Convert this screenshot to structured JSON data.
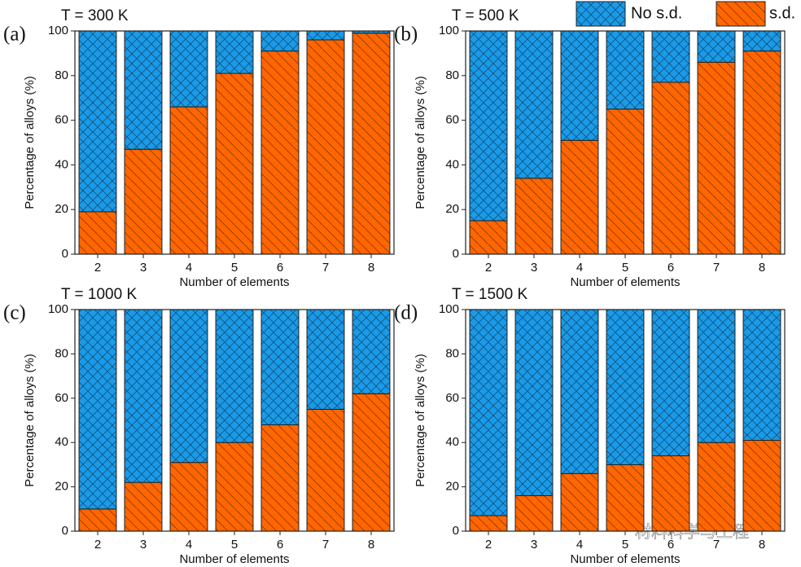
{
  "chart_data": [
    {
      "type": "bar",
      "stacked": true,
      "label": "(a)",
      "title": "T = 300 K",
      "x_label": "Number of elements",
      "y_label": "Percentage of alloys (%)",
      "categories": [
        "2",
        "3",
        "4",
        "5",
        "6",
        "7",
        "8"
      ],
      "series": [
        {
          "color": "#1a9ae8",
          "hatch": "cross",
          "values": [
            81,
            53,
            34,
            19,
            9,
            4,
            1
          ]
        },
        {
          "color": "#ff6600",
          "hatch": "diagonal",
          "values": [
            19,
            47,
            66,
            81,
            91,
            96,
            99
          ]
        }
      ],
      "ylim": [
        0,
        100
      ],
      "yticks": [
        0,
        20,
        40,
        60,
        80,
        100
      ]
    },
    {
      "type": "bar",
      "stacked": true,
      "label": "(b)",
      "title": "T = 500 K",
      "x_label": "Number of elements",
      "y_label": "Percentage of alloys (%)",
      "categories": [
        "2",
        "3",
        "4",
        "5",
        "6",
        "7",
        "8"
      ],
      "series": [
        {
          "name": "No s.d.",
          "color": "#1a9ae8",
          "hatch": "cross",
          "values": [
            85,
            66,
            49,
            35,
            23,
            14,
            9
          ]
        },
        {
          "name": "s.d.",
          "color": "#ff6600",
          "hatch": "diagonal",
          "values": [
            15,
            34,
            51,
            65,
            77,
            86,
            91
          ]
        }
      ],
      "legend": "top",
      "ylim": [
        0,
        100
      ],
      "yticks": [
        0,
        20,
        40,
        60,
        80,
        100
      ]
    },
    {
      "type": "bar",
      "stacked": true,
      "label": "(c)",
      "title": "T = 1000 K",
      "x_label": "Number of elements",
      "y_label": "Percentage of alloys (%)",
      "categories": [
        "2",
        "3",
        "4",
        "5",
        "6",
        "7",
        "8"
      ],
      "series": [
        {
          "color": "#1a9ae8",
          "hatch": "cross",
          "values": [
            90,
            78,
            69,
            60,
            52,
            45,
            38
          ]
        },
        {
          "color": "#ff6600",
          "hatch": "diagonal",
          "values": [
            10,
            22,
            31,
            40,
            48,
            55,
            62
          ]
        }
      ],
      "ylim": [
        0,
        100
      ],
      "yticks": [
        0,
        20,
        40,
        60,
        80,
        100
      ]
    },
    {
      "type": "bar",
      "stacked": true,
      "label": "(d)",
      "title": "T = 1500 K",
      "x_label": "Number of elements",
      "y_label": "Percentage of alloys (%)",
      "categories": [
        "2",
        "3",
        "4",
        "5",
        "6",
        "7",
        "8"
      ],
      "series": [
        {
          "color": "#1a9ae8",
          "hatch": "cross",
          "values": [
            93,
            84,
            74,
            70,
            66,
            60,
            59
          ]
        },
        {
          "color": "#ff6600",
          "hatch": "diagonal",
          "values": [
            7,
            16,
            26,
            30,
            34,
            40,
            41
          ]
        }
      ],
      "ylim": [
        0,
        100
      ],
      "yticks": [
        0,
        20,
        40,
        60,
        80,
        100
      ]
    }
  ],
  "watermark": "材料科学与工程"
}
